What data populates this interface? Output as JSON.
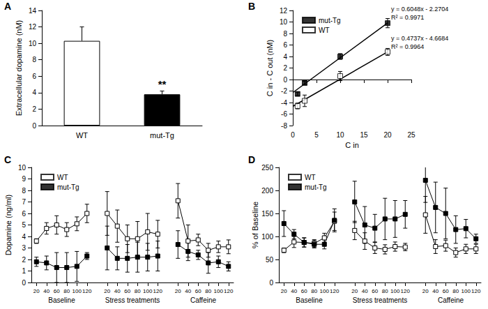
{
  "chart_data": [
    {
      "panel": "A",
      "type": "bar",
      "grid": false,
      "categories": [
        "WT",
        "mut-Tg"
      ],
      "values": [
        10.3,
        3.8
      ],
      "errors": [
        1.7,
        0.4
      ],
      "colors": [
        "#ffffff",
        "#000000"
      ],
      "y_label": "Extracellular dopamine (nM)",
      "ylim": [
        0,
        14
      ],
      "yticks": [
        0,
        2,
        4,
        6,
        8,
        10,
        12,
        14
      ],
      "annotations": [
        {
          "text": "**",
          "category": "mut-Tg"
        }
      ]
    },
    {
      "panel": "B",
      "type": "scatter",
      "grid": false,
      "legend": "upper left",
      "x_label": "C in",
      "y_label": "C in - C out (nM)",
      "xlim": [
        0,
        25
      ],
      "xticks": [
        0,
        5,
        10,
        15,
        20,
        25
      ],
      "ylim": [
        -8,
        12
      ],
      "yticks": [
        -8,
        -6,
        -4,
        -2,
        0,
        2,
        4,
        6,
        8,
        10,
        12
      ],
      "series": [
        {
          "name": "mut-Tg",
          "color": "#000000",
          "marker": "square",
          "x": [
            1,
            2.5,
            10,
            20
          ],
          "values": [
            -2.5,
            -0.6,
            4.0,
            9.8
          ],
          "errors": [
            0.3,
            0.3,
            0.5,
            0.8
          ],
          "fit": {
            "slope": 0.6048,
            "intercept": -2.2704,
            "x_range": [
              0,
              20
            ]
          },
          "equation": "y = 0.6048x - 2.2704",
          "r_squared": "R² = 0.9971"
        },
        {
          "name": "WT",
          "color": "#000000",
          "marker": "square-open",
          "x": [
            1,
            2.5,
            10,
            20
          ],
          "values": [
            -4.6,
            -3.7,
            0.6,
            4.8
          ],
          "errors": [
            0.5,
            1.0,
            0.8,
            0.6
          ],
          "fit": {
            "slope": 0.4737,
            "intercept": -4.6684,
            "x_range": [
              0,
              20
            ]
          },
          "equation": "y = 0.4737x - 4.6684",
          "r_squared": "R² = 0.9964"
        }
      ]
    },
    {
      "panel": "C",
      "type": "line",
      "grid": false,
      "legend": "upper left",
      "categories": [
        "20",
        "40",
        "60",
        "80",
        "100",
        "120",
        null,
        "20",
        "40",
        "60",
        "80",
        "100",
        "120",
        null,
        "20",
        "40",
        "60",
        "80",
        "100",
        "120"
      ],
      "groups": [
        "Baseline",
        "Stress treatments",
        "Caffeine"
      ],
      "y_label": "Dopamine (ng/ml)",
      "ylim": [
        0,
        10
      ],
      "yticks": [
        0,
        1,
        2,
        3,
        4,
        5,
        6,
        7,
        8,
        9,
        10
      ],
      "series": [
        {
          "name": "WT",
          "color": "#000000",
          "marker": "square-open",
          "values": [
            3.6,
            4.7,
            5.0,
            4.6,
            5.1,
            6.0,
            null,
            6.0,
            4.9,
            3.8,
            3.8,
            4.4,
            4.2,
            null,
            7.1,
            3.6,
            3.7,
            2.8,
            3.1,
            3.1
          ],
          "errors": [
            0.2,
            0.5,
            0.8,
            0.6,
            0.6,
            0.8,
            null,
            1.9,
            1.4,
            1.2,
            1.5,
            1.6,
            1.2,
            null,
            1.5,
            1.4,
            0.5,
            0.6,
            0.5,
            0.6
          ]
        },
        {
          "name": "mut-Tg",
          "color": "#000000",
          "marker": "square",
          "values": [
            1.8,
            1.7,
            1.3,
            1.3,
            1.4,
            2.3,
            null,
            3.0,
            2.1,
            2.1,
            2.2,
            2.2,
            2.3,
            null,
            3.3,
            2.7,
            2.4,
            1.7,
            1.8,
            1.4
          ],
          "errors": [
            0.4,
            0.6,
            1.3,
            1.3,
            1.3,
            0.3,
            null,
            1.9,
            1.0,
            1.2,
            1.3,
            1.2,
            1.3,
            null,
            1.2,
            0.8,
            0.4,
            0.9,
            0.5,
            0.4
          ]
        }
      ]
    },
    {
      "panel": "D",
      "type": "line",
      "grid": false,
      "legend": "upper left",
      "categories": [
        "20",
        "40",
        "60",
        "80",
        "100",
        "120",
        null,
        "20",
        "40",
        "60",
        "80",
        "100",
        "120",
        null,
        "20",
        "40",
        "60",
        "80",
        "100",
        "120"
      ],
      "groups": [
        "Baseline",
        "Stress treatments",
        "Caffeine"
      ],
      "y_label": "% of Baseline",
      "ylim": [
        0,
        250
      ],
      "yticks": [
        0,
        50,
        100,
        150,
        200,
        250
      ],
      "series": [
        {
          "name": "WT",
          "color": "#000000",
          "marker": "square-open",
          "values": [
            70,
            88,
            87,
            85,
            97,
            133,
            null,
            113,
            90,
            75,
            72,
            78,
            77,
            null,
            147,
            78,
            80,
            65,
            73,
            73
          ],
          "errors": [
            5,
            12,
            10,
            8,
            10,
            20,
            null,
            20,
            18,
            12,
            10,
            10,
            8,
            null,
            40,
            15,
            12,
            10,
            10,
            10
          ]
        },
        {
          "name": "mut-Tg",
          "color": "#000000",
          "marker": "square",
          "values": [
            128,
            105,
            87,
            83,
            83,
            135,
            null,
            175,
            125,
            118,
            138,
            138,
            148,
            null,
            222,
            163,
            150,
            115,
            117,
            95
          ],
          "errors": [
            28,
            10,
            10,
            8,
            10,
            25,
            null,
            45,
            40,
            30,
            45,
            40,
            30,
            null,
            48,
            55,
            55,
            30,
            20,
            10
          ]
        }
      ]
    }
  ]
}
